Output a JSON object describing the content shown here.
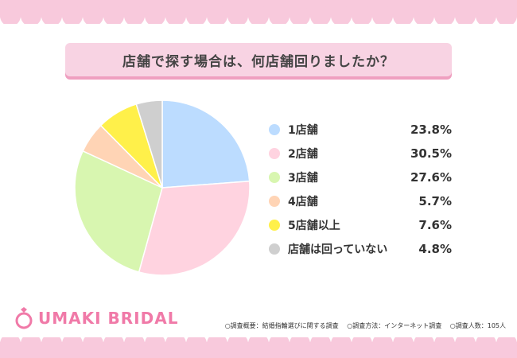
{
  "title": "店舗で探す場合は、何店舗回りましたか？",
  "brand": "UMAKI BRIDAL",
  "footnotes": [
    "○調査概要：結婚指輪選びに関する調査",
    "○調査方法：インターネット調査",
    "○調査人数：105人"
  ],
  "colors": {
    "pink_border": "#f8c9dc",
    "title_bg": "#f8d3e3",
    "brand": "#f07aa8"
  },
  "chart_data": {
    "type": "pie",
    "title": "店舗で探す場合は、何店舗回りましたか？",
    "start": "12 o'clock, clockwise",
    "legend_position": "right",
    "slices": [
      {
        "label": "1店舗",
        "value": 23.8,
        "display": "23.8%",
        "color": "#bcdcff"
      },
      {
        "label": "2店舗",
        "value": 30.5,
        "display": "30.5%",
        "color": "#ffd3e0"
      },
      {
        "label": "3店舗",
        "value": 27.6,
        "display": "27.6%",
        "color": "#d8f6b0"
      },
      {
        "label": "4店舗",
        "value": 5.7,
        "display": "5.7%",
        "color": "#ffd4b5"
      },
      {
        "label": "5店舗以上",
        "value": 7.6,
        "display": "7.6%",
        "color": "#fff04a"
      },
      {
        "label": "店舗は回っていない",
        "value": 4.8,
        "display": "4.8%",
        "color": "#cfcfcf"
      }
    ]
  }
}
